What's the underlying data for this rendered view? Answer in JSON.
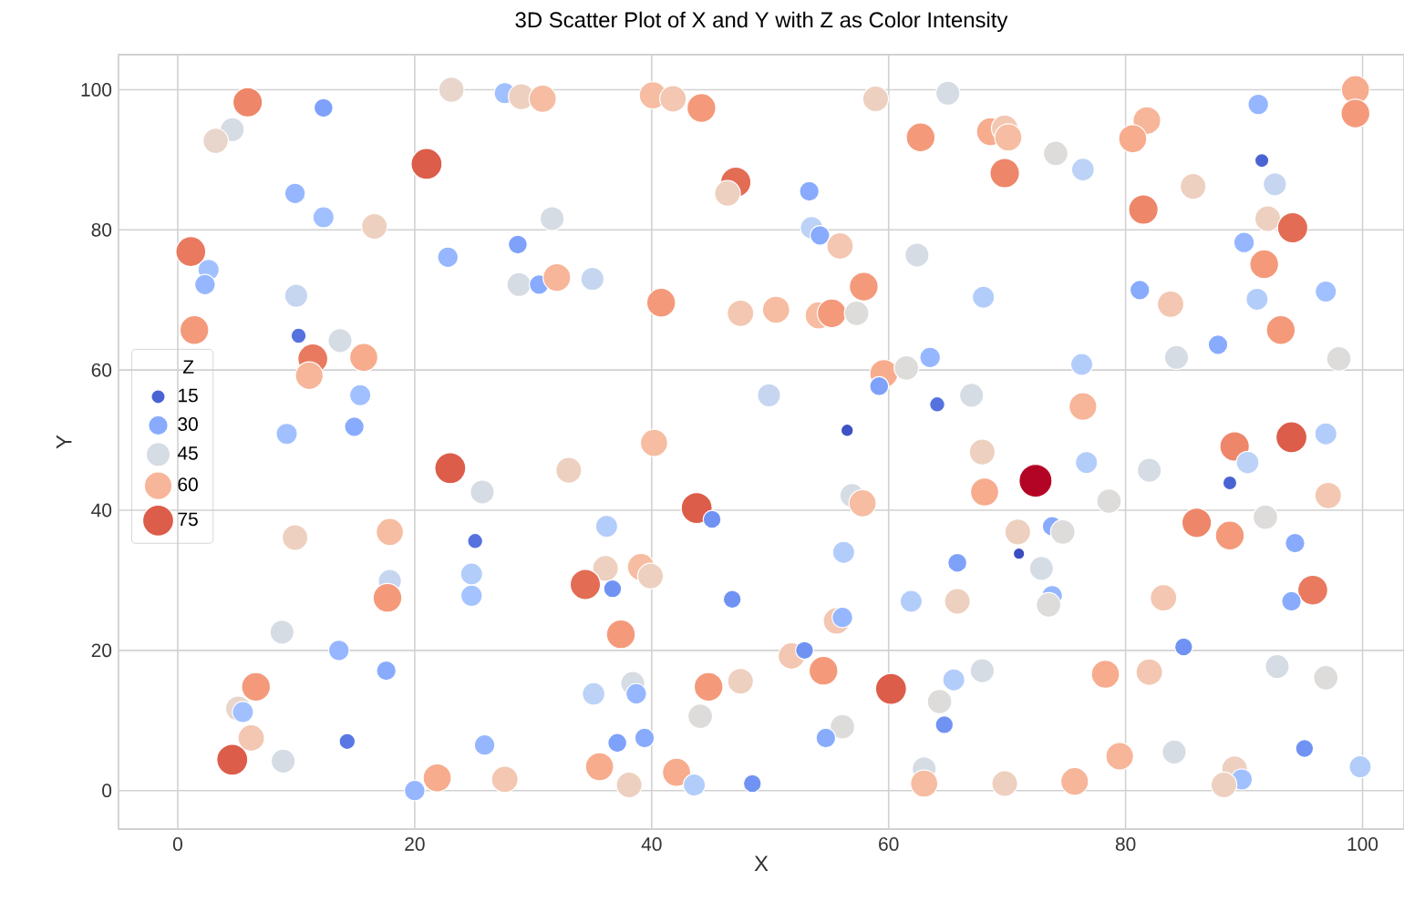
{
  "chart_data": {
    "type": "bubble",
    "title": "3D Scatter Plot of X and Y with Z as Color Intensity",
    "xlabel": "X",
    "ylabel": "Y",
    "legend_title": "Z",
    "grid": true,
    "xlim": [
      -5,
      103.5
    ],
    "ylim": [
      -5.5,
      105
    ],
    "xticks": [
      0,
      20,
      40,
      60,
      80,
      100
    ],
    "yticks": [
      0,
      20,
      40,
      60,
      80,
      100
    ],
    "size_legend": [
      15,
      30,
      45,
      60,
      75
    ],
    "x": [
      9.9,
      17.9,
      25.1,
      24.8,
      24.8,
      17.9,
      17.7,
      8.8,
      13.6,
      17.6,
      6.6,
      5.1,
      5.5,
      6.2,
      4.6,
      8.9,
      14.3,
      25.9,
      20,
      21.9,
      27.6,
      23,
      25.7,
      5.9,
      12.3,
      4.6,
      3.2,
      21,
      9.9,
      12.3,
      16.6,
      1.1,
      2.6,
      2.3,
      10,
      22.8,
      28.7,
      28.8,
      30.5,
      23.1,
      27.6,
      29,
      30.8,
      1.4,
      10.2,
      13.7,
      11.4,
      15.7,
      11.1,
      15.4,
      9.2,
      14.9,
      40.1,
      41.8,
      44.2,
      58.9,
      65,
      62.7,
      47.1,
      46.4,
      53.3,
      31.6,
      53.5,
      54.2,
      55.9,
      62.4,
      32,
      35,
      57.9,
      40.8,
      47.5,
      50.5,
      54.1,
      55.2,
      57.3,
      59.6,
      61.5,
      63.5,
      59.2,
      49.9,
      64.1,
      56.5,
      40.2,
      99.4,
      99.4,
      91.2,
      68.6,
      69.8,
      70.1,
      69.8,
      74.1,
      76.4,
      81.8,
      80.6,
      91.5,
      92.6,
      85.7,
      81.5,
      92,
      94.1,
      90,
      91.7,
      81.2,
      83.8,
      91.1,
      96.9,
      93.1,
      87.8,
      84.3,
      98,
      68,
      76.3,
      67,
      76.4,
      94,
      96.9,
      89.2,
      33,
      43.8,
      45.1,
      36.2,
      36.1,
      39.1,
      39.9,
      34.4,
      36.7,
      46.8,
      37.4,
      56.2,
      56.9,
      57.8,
      65.8,
      61.9,
      65.8,
      55.6,
      56.1,
      51.8,
      52.9,
      54.5,
      60.2,
      65.5,
      64.3,
      64.7,
      35.1,
      38.4,
      38.7,
      44.8,
      47.5,
      44.1,
      37.1,
      39.4,
      56.1,
      54.7,
      35.6,
      42.1,
      38.1,
      43.6,
      48.5,
      63,
      63,
      67.9,
      68.1,
      72.4,
      76.7,
      82,
      78.6,
      90.3,
      88.8,
      97.1,
      70.9,
      73.8,
      74.7,
      71,
      72.9,
      73.8,
      73.5,
      86,
      88.8,
      91.8,
      94.3,
      95.8,
      94,
      83.2,
      84.9,
      67.9,
      78.3,
      82,
      92.8,
      96.9,
      79.5,
      84.1,
      95.1,
      99.8,
      69.8,
      75.7,
      89.2,
      89.8,
      88.3
    ],
    "values": [
      36.1,
      36.9,
      35.6,
      30.9,
      27.8,
      29.9,
      27.5,
      22.6,
      20,
      17.1,
      14.8,
      11.7,
      11.2,
      7.5,
      4.4,
      4.2,
      7,
      6.5,
      0,
      1.8,
      1.6,
      46,
      42.6,
      98.2,
      97.4,
      94.3,
      92.7,
      89.4,
      85.2,
      81.8,
      80.5,
      76.9,
      74.3,
      72.2,
      70.6,
      76.1,
      77.9,
      72.2,
      72.2,
      100,
      99.5,
      99,
      98.7,
      65.7,
      64.9,
      64.2,
      61.6,
      61.8,
      59.2,
      56.4,
      50.9,
      51.9,
      99.2,
      98.7,
      97.4,
      98.7,
      99.5,
      93.2,
      86.8,
      85.2,
      85.5,
      81.6,
      80.3,
      79.2,
      77.7,
      76.4,
      73.2,
      73,
      71.9,
      69.6,
      68.1,
      68.6,
      67.8,
      68.1,
      68.1,
      59.5,
      60.3,
      61.8,
      57.7,
      56.4,
      55.1,
      51.4,
      49.6,
      100,
      96.6,
      97.9,
      94,
      94.5,
      93.2,
      88.1,
      90.9,
      88.6,
      95.6,
      93,
      89.9,
      86.5,
      86.2,
      82.9,
      81.6,
      80.3,
      78.2,
      75.1,
      71.4,
      69.4,
      70.1,
      71.2,
      65.7,
      63.6,
      61.8,
      61.6,
      70.4,
      60.8,
      56.4,
      54.8,
      50.4,
      50.9,
      49.1,
      45.7,
      40.3,
      38.7,
      37.7,
      31.7,
      31.9,
      30.6,
      29.4,
      28.8,
      27.3,
      22.3,
      34,
      42.1,
      41,
      32.5,
      27,
      27,
      24.2,
      24.7,
      19.2,
      20,
      17.1,
      14.5,
      15.8,
      12.7,
      9.4,
      13.8,
      15.3,
      13.8,
      14.8,
      15.6,
      10.6,
      6.8,
      7.5,
      9.1,
      7.5,
      3.4,
      2.6,
      0.8,
      0.8,
      1,
      3.1,
      1,
      48.3,
      42.6,
      44.2,
      46.8,
      45.7,
      41.3,
      46.8,
      43.9,
      42.1,
      36.9,
      37.7,
      36.9,
      33.8,
      31.7,
      27.8,
      26.5,
      38.2,
      36.4,
      39,
      35.3,
      28.6,
      27,
      27.5,
      20.5,
      17.1,
      16.6,
      16.9,
      17.7,
      16.1,
      4.9,
      5.5,
      6,
      3.4,
      1,
      1.3,
      3.1,
      1.6,
      0.8
    ],
    "sizes": [
      52,
      58,
      18,
      38,
      36,
      42,
      65,
      45,
      33,
      30,
      65,
      50,
      35,
      55,
      75,
      45,
      20,
      33,
      33,
      62,
      55,
      75,
      45,
      68,
      28,
      45,
      50,
      75,
      33,
      35,
      52,
      70,
      35,
      33,
      42,
      33,
      28,
      45,
      30,
      50,
      35,
      52,
      58,
      65,
      18,
      45,
      70,
      62,
      60,
      35,
      35,
      30,
      58,
      55,
      65,
      52,
      45,
      65,
      72,
      52,
      30,
      45,
      40,
      30,
      55,
      45,
      60,
      42,
      65,
      65,
      55,
      58,
      58,
      65,
      47,
      62,
      47,
      33,
      28,
      42,
      18,
      12,
      58,
      62,
      65,
      33,
      62,
      55,
      58,
      68,
      47,
      40,
      60,
      62,
      15,
      42,
      52,
      68,
      52,
      72,
      33,
      65,
      30,
      55,
      38,
      35,
      65,
      30,
      45,
      47,
      38,
      38,
      45,
      60,
      75,
      38,
      68,
      52,
      75,
      25,
      38,
      52,
      58,
      52,
      72,
      25,
      25,
      65,
      38,
      45,
      58,
      28,
      38,
      52,
      55,
      33,
      55,
      25,
      65,
      75,
      38,
      47,
      25,
      40,
      45,
      33,
      65,
      52,
      47,
      28,
      30,
      47,
      30,
      62,
      62,
      52,
      38,
      25,
      45,
      58,
      52,
      62,
      85,
      38,
      45,
      47,
      40,
      15,
      55,
      52,
      30,
      47,
      10,
      45,
      33,
      47,
      68,
      65,
      47,
      30,
      70,
      30,
      55,
      25,
      45,
      62,
      55,
      45,
      47,
      60,
      45,
      25,
      38,
      52,
      60,
      52,
      35,
      52
    ],
    "colors": [
      "#eed0c0",
      "#f6bda2",
      "#5572df",
      "#b3cdfb",
      "#a5c3fe",
      "#c6d6f1",
      "#f49a7b",
      "#d6dce4",
      "#96b7ff",
      "#88abfd",
      "#f49a7b",
      "#e8d6cc",
      "#a1c0ff",
      "#f3c7b1",
      "#dc5d4a",
      "#d6dce4",
      "#5a78e4",
      "#96b7ff",
      "#96b7ff",
      "#f7ac8e",
      "#f3c7b1",
      "#dc5d4a",
      "#d6dce4",
      "#ee8669",
      "#7ea1fa",
      "#d6dce4",
      "#e8d6cc",
      "#dc5d4a",
      "#96b7ff",
      "#a1c0ff",
      "#eed0c0",
      "#e97a5f",
      "#a1c0ff",
      "#96b7ff",
      "#c6d6f1",
      "#96b7ff",
      "#7ea1fa",
      "#d6dce4",
      "#88abfd",
      "#e8d6cc",
      "#a1c0ff",
      "#eed0c0",
      "#f6bda2",
      "#f49a7b",
      "#5572df",
      "#d6dce4",
      "#e97a5f",
      "#f7ac8e",
      "#f7b599",
      "#a1c0ff",
      "#a1c0ff",
      "#88abfd",
      "#f6bda2",
      "#f3c7b1",
      "#f49a7b",
      "#eed0c0",
      "#d6dce4",
      "#f49a7b",
      "#e36c55",
      "#eed0c0",
      "#88abfd",
      "#d6dce4",
      "#bcd2f7",
      "#88abfd",
      "#f3c7b1",
      "#d6dce4",
      "#f7b599",
      "#c6d6f1",
      "#f49a7b",
      "#f49a7b",
      "#f3c7b1",
      "#f6bda2",
      "#f6bda2",
      "#f49a7b",
      "#dedcdb",
      "#f7ac8e",
      "#dedcdb",
      "#96b7ff",
      "#7ea1fa",
      "#c6d6f1",
      "#5572df",
      "#3e51c5",
      "#f6bda2",
      "#f7ac8e",
      "#f49a7b",
      "#96b7ff",
      "#f7ac8e",
      "#f3c7b1",
      "#f6bda2",
      "#ee8669",
      "#dedcdb",
      "#bcd2f7",
      "#f7b599",
      "#f7ac8e",
      "#4a63d3",
      "#c6d6f1",
      "#eed0c0",
      "#ee8669",
      "#eed0c0",
      "#e36c55",
      "#96b7ff",
      "#f49a7b",
      "#88abfd",
      "#f3c7b1",
      "#b3cdfb",
      "#a1c0ff",
      "#f49a7b",
      "#88abfd",
      "#d6dce4",
      "#dedcdb",
      "#b3cdfb",
      "#b3cdfb",
      "#d6dce4",
      "#f7b599",
      "#dc5d4a",
      "#b3cdfb",
      "#ee8669",
      "#eed0c0",
      "#dc5d4a",
      "#7093f3",
      "#b3cdfb",
      "#eed0c0",
      "#f6bda2",
      "#eed0c0",
      "#e36c55",
      "#7093f3",
      "#7093f3",
      "#f49a7b",
      "#b3cdfb",
      "#d6dce4",
      "#f6bda2",
      "#7ea1fa",
      "#b3cdfb",
      "#eed0c0",
      "#f3c7b1",
      "#96b7ff",
      "#f3c7b1",
      "#7093f3",
      "#f49a7b",
      "#dc5d4a",
      "#b3cdfb",
      "#dedcdb",
      "#7093f3",
      "#bcd2f7",
      "#d6dce4",
      "#96b7ff",
      "#f49a7b",
      "#eed0c0",
      "#dedcdb",
      "#7ea1fa",
      "#88abfd",
      "#dedcdb",
      "#88abfd",
      "#f7ac8e",
      "#f7ac8e",
      "#eed0c0",
      "#b3cdfb",
      "#7093f3",
      "#d6dce4",
      "#f6bda2",
      "#eed0c0",
      "#f7ac8e",
      "#b40426",
      "#b3cdfb",
      "#d6dce4",
      "#dedcdb",
      "#bcd2f7",
      "#4a63d3",
      "#f3c7b1",
      "#eed0c0",
      "#88abfd",
      "#dedcdb",
      "#3b4cc0",
      "#d6dce4",
      "#96b7ff",
      "#dedcdb",
      "#ee8669",
      "#f49a7b",
      "#dedcdb",
      "#88abfd",
      "#e97a5f",
      "#88abfd",
      "#f3c7b1",
      "#7093f3",
      "#d6dce4",
      "#f7ac8e",
      "#f3c7b1",
      "#d6dce4",
      "#dedcdb",
      "#f7b599",
      "#d6dce4",
      "#7093f3",
      "#b3cdfb",
      "#eed0c0",
      "#f7b599",
      "#eed0c0",
      "#a1c0ff",
      "#eed0c0"
    ]
  }
}
